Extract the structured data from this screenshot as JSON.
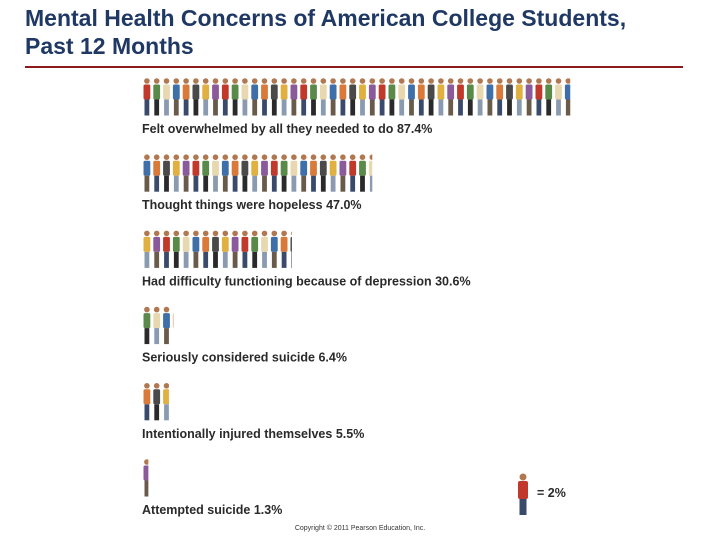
{
  "chart_data": {
    "type": "pictograph",
    "title": "Mental Health Concerns of American College Students, Past 12 Months",
    "categories": [
      "Felt overwhelmed by all they needed to do",
      "Thought things were hopeless",
      "Had difficulty functioning because of depression",
      "Seriously considered suicide",
      "Intentionally injured themselves",
      "Attempted suicide"
    ],
    "values": [
      87.4,
      47.0,
      30.6,
      6.4,
      5.5,
      1.3
    ],
    "value_labels": [
      "87.4%",
      "47.0%",
      "30.6%",
      "6.4%",
      "5.5%",
      "1.3%"
    ],
    "unit_value": 2,
    "unit_label": "= 2%",
    "colors": [
      "#c0392b",
      "#3f6fa8",
      "#e0b040",
      "#5a8a4a",
      "#d97a3a",
      "#8a5a9a",
      "#e8d8b0",
      "#4a4a4a"
    ],
    "footer": "Copyright © 2011 Pearson Education, Inc."
  }
}
